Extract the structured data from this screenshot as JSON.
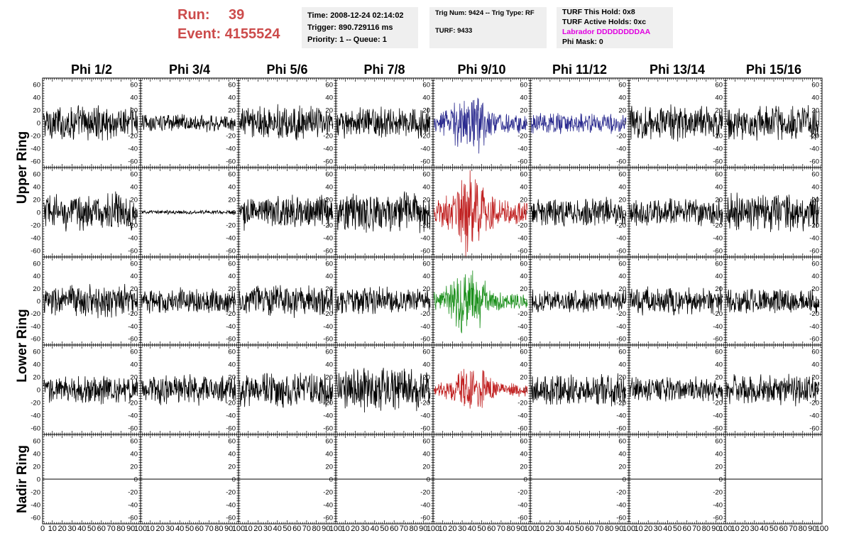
{
  "header": {
    "run_label": "Run:",
    "run_value": "39",
    "event_label": "Event:",
    "event_value": "4155524",
    "time": "Time: 2008-12-24 02:14:02",
    "trigger": "Trigger: 890.729116 ms",
    "priority": "Priority: 1 -- Queue: 1",
    "trig_num": "Trig Num: 9424 -- Trig Type: RF",
    "turf": "TURF: 9433",
    "turf_this_hold": "TURF This Hold: 0x8",
    "turf_active_holds": "TURF Active Holds: 0xc",
    "labrador": "Labrador DDDDDDDDAA",
    "phi_mask": "Phi Mask: 0"
  },
  "colors": {
    "header_red": "#cc4b4b",
    "labrador_magenta": "#e000e0",
    "trace_default": "#000000",
    "trace_blue": "#2b2b8f",
    "trace_red": "#c02020",
    "trace_green": "#1a8f1a"
  },
  "chart_data": {
    "type": "line",
    "title": "",
    "columns": [
      "Phi 1/2",
      "Phi 3/4",
      "Phi 5/6",
      "Phi 7/8",
      "Phi 9/10",
      "Phi 11/12",
      "Phi 13/14",
      "Phi 15/16"
    ],
    "rows": [
      "Upper Ring",
      "Upper Ring",
      "Lower Ring",
      "Lower Ring",
      "Nadir Ring"
    ],
    "row_labels": [
      {
        "text": "Upper Ring",
        "spans_rows": [
          0,
          1
        ]
      },
      {
        "text": "Lower Ring",
        "spans_rows": [
          2,
          3
        ]
      },
      {
        "text": "Nadir Ring",
        "spans_rows": [
          4,
          4
        ]
      }
    ],
    "ylim": [
      -70,
      70
    ],
    "yticks": [
      -60,
      -40,
      -20,
      0,
      20,
      40,
      60
    ],
    "xlim": [
      0,
      100
    ],
    "xticks": [
      0,
      10,
      20,
      30,
      40,
      50,
      60,
      70,
      80,
      90,
      100
    ],
    "grid": false,
    "highlighted": [
      {
        "row": 0,
        "column": 4,
        "color": "#2b2b8f"
      },
      {
        "row": 0,
        "column": 5,
        "color": "#2b2b8f"
      },
      {
        "row": 1,
        "column": 4,
        "color": "#c02020"
      },
      {
        "row": 2,
        "column": 4,
        "color": "#1a8f1a"
      },
      {
        "row": 3,
        "column": 4,
        "color": "#c02020"
      }
    ],
    "noise_amplitude": [
      [
        28,
        14,
        28,
        24,
        45,
        16,
        28,
        28
      ],
      [
        30,
        3,
        28,
        34,
        55,
        22,
        22,
        30
      ],
      [
        26,
        20,
        26,
        22,
        42,
        18,
        22,
        20
      ],
      [
        22,
        24,
        28,
        36,
        30,
        26,
        20,
        24
      ],
      [
        0,
        0,
        0,
        0,
        0,
        0,
        0,
        0
      ]
    ],
    "pulse_peaks": [
      {
        "row": 0,
        "column": 4,
        "peak_x": 38
      },
      {
        "row": 1,
        "column": 4,
        "peak_x": 38
      },
      {
        "row": 2,
        "column": 4,
        "peak_x": 36
      },
      {
        "row": 3,
        "column": 4,
        "peak_x": 40
      }
    ],
    "nadir_last_column_axis": false
  }
}
